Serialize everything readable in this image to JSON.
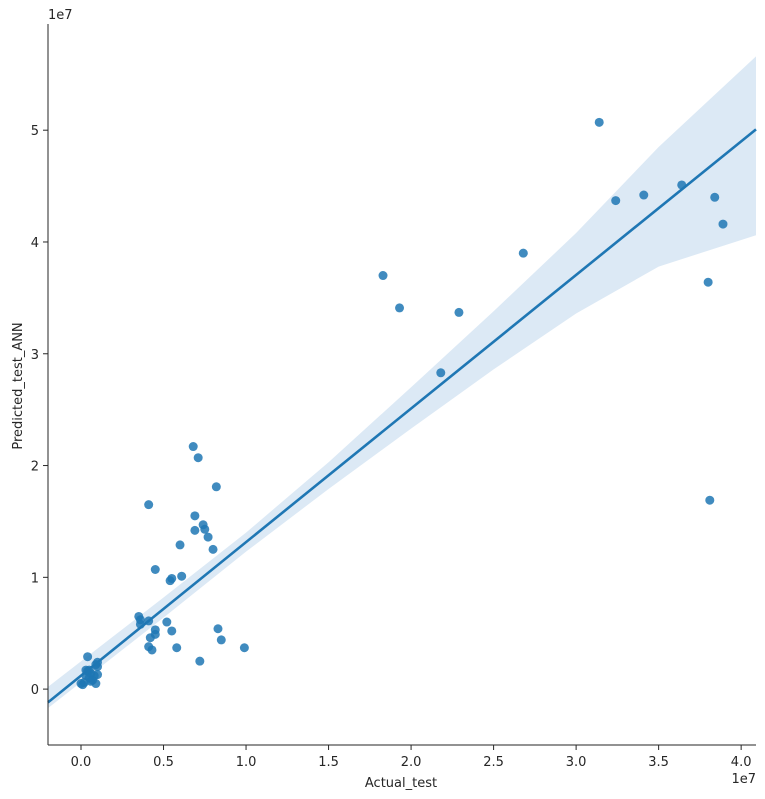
{
  "chart_data": {
    "type": "scatter",
    "title": "",
    "xlabel": "Actual_test",
    "ylabel": "Predicted_test_ANN",
    "x_offset_label": "1e7",
    "y_offset_label": "1e7",
    "xlim": [
      -0.2,
      4.09
    ],
    "ylim": [
      -0.5,
      5.95
    ],
    "x_ticks": [
      0.0,
      0.5,
      1.0,
      1.5,
      2.0,
      2.5,
      3.0,
      3.5,
      4.0
    ],
    "x_tick_labels": [
      "0.0",
      "0.5",
      "1.0",
      "1.5",
      "2.0",
      "2.5",
      "3.0",
      "3.5",
      "4.0"
    ],
    "y_ticks": [
      0,
      1,
      2,
      3,
      4,
      5
    ],
    "y_tick_labels": [
      "0",
      "1",
      "2",
      "3",
      "4",
      "5"
    ],
    "units_note": "values in units of 1e7",
    "colors": {
      "points": "#1f77b4",
      "line": "#1f77b4",
      "band": "#dce9f5",
      "axis": "#262626"
    },
    "points": [
      {
        "x": 0.0,
        "y": 0.05
      },
      {
        "x": 0.01,
        "y": 0.04
      },
      {
        "x": 0.02,
        "y": 0.06
      },
      {
        "x": 0.03,
        "y": 0.12
      },
      {
        "x": 0.04,
        "y": 0.16
      },
      {
        "x": 0.04,
        "y": 0.29
      },
      {
        "x": 0.05,
        "y": 0.1
      },
      {
        "x": 0.05,
        "y": 0.17
      },
      {
        "x": 0.06,
        "y": 0.14
      },
      {
        "x": 0.07,
        "y": 0.08
      },
      {
        "x": 0.08,
        "y": 0.12
      },
      {
        "x": 0.09,
        "y": 0.05
      },
      {
        "x": 0.1,
        "y": 0.2
      },
      {
        "x": 0.1,
        "y": 0.13
      },
      {
        "x": 0.09,
        "y": 0.22
      },
      {
        "x": 0.1,
        "y": 0.24
      },
      {
        "x": 0.03,
        "y": 0.17
      },
      {
        "x": 0.06,
        "y": 0.07
      },
      {
        "x": 0.35,
        "y": 0.65
      },
      {
        "x": 0.36,
        "y": 0.58
      },
      {
        "x": 0.36,
        "y": 0.62
      },
      {
        "x": 0.41,
        "y": 0.61
      },
      {
        "x": 0.41,
        "y": 0.38
      },
      {
        "x": 0.42,
        "y": 0.46
      },
      {
        "x": 0.43,
        "y": 0.35
      },
      {
        "x": 0.45,
        "y": 0.49
      },
      {
        "x": 0.45,
        "y": 0.53
      },
      {
        "x": 0.45,
        "y": 1.07
      },
      {
        "x": 0.52,
        "y": 0.6
      },
      {
        "x": 0.54,
        "y": 0.97
      },
      {
        "x": 0.55,
        "y": 0.99
      },
      {
        "x": 0.55,
        "y": 0.52
      },
      {
        "x": 0.58,
        "y": 0.37
      },
      {
        "x": 0.6,
        "y": 1.29
      },
      {
        "x": 0.61,
        "y": 1.01
      },
      {
        "x": 0.41,
        "y": 1.65
      },
      {
        "x": 0.68,
        "y": 2.17
      },
      {
        "x": 0.71,
        "y": 2.07
      },
      {
        "x": 0.69,
        "y": 1.55
      },
      {
        "x": 0.69,
        "y": 1.42
      },
      {
        "x": 0.74,
        "y": 1.47
      },
      {
        "x": 0.75,
        "y": 1.43
      },
      {
        "x": 0.77,
        "y": 1.36
      },
      {
        "x": 0.8,
        "y": 1.25
      },
      {
        "x": 0.82,
        "y": 1.81
      },
      {
        "x": 0.72,
        "y": 0.25
      },
      {
        "x": 0.83,
        "y": 0.54
      },
      {
        "x": 0.85,
        "y": 0.44
      },
      {
        "x": 0.99,
        "y": 0.37
      },
      {
        "x": 1.83,
        "y": 3.7
      },
      {
        "x": 1.93,
        "y": 3.41
      },
      {
        "x": 2.18,
        "y": 2.83
      },
      {
        "x": 2.29,
        "y": 3.37
      },
      {
        "x": 2.68,
        "y": 3.9
      },
      {
        "x": 3.14,
        "y": 5.07
      },
      {
        "x": 3.24,
        "y": 4.37
      },
      {
        "x": 3.41,
        "y": 4.42
      },
      {
        "x": 3.64,
        "y": 4.51
      },
      {
        "x": 3.8,
        "y": 3.64
      },
      {
        "x": 3.81,
        "y": 1.69
      },
      {
        "x": 3.84,
        "y": 4.4
      },
      {
        "x": 3.89,
        "y": 4.16
      }
    ],
    "regression": {
      "slope": 1.195,
      "intercept": 0.12
    },
    "confidence_band": [
      {
        "x": -0.2,
        "lo": -0.17,
        "hi": 0.02
      },
      {
        "x": 0.5,
        "lo": 0.64,
        "hi": 0.82
      },
      {
        "x": 1.0,
        "lo": 1.23,
        "hi": 1.4
      },
      {
        "x": 1.5,
        "lo": 1.79,
        "hi": 2.03
      },
      {
        "x": 2.0,
        "lo": 2.33,
        "hi": 2.7
      },
      {
        "x": 2.5,
        "lo": 2.86,
        "hi": 3.38
      },
      {
        "x": 3.0,
        "lo": 3.36,
        "hi": 4.08
      },
      {
        "x": 3.5,
        "lo": 3.78,
        "hi": 4.85
      },
      {
        "x": 4.09,
        "lo": 4.06,
        "hi": 5.66
      }
    ]
  }
}
